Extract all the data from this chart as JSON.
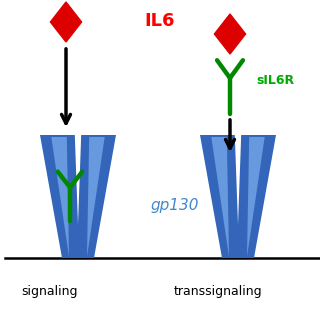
{
  "title": "IL6",
  "title_color": "#ff0000",
  "title_fontsize": 13,
  "bg_color": "#ffffff",
  "label_left": "signaling",
  "label_right": "transsignaling",
  "label_color": "#000000",
  "label_fontsize": 9,
  "gp130_label": "gp130",
  "gp130_color": "#4488cc",
  "gp130_fontsize": 11,
  "sIL6R_label": "sIL6R",
  "sIL6R_color": "#00aa00",
  "receptor_blue": "#3366bb",
  "receptor_blue_light": "#6699dd",
  "il6_diamond_color": "#dd0000",
  "receptor_green": "#008800",
  "arrow_color": "#000000"
}
